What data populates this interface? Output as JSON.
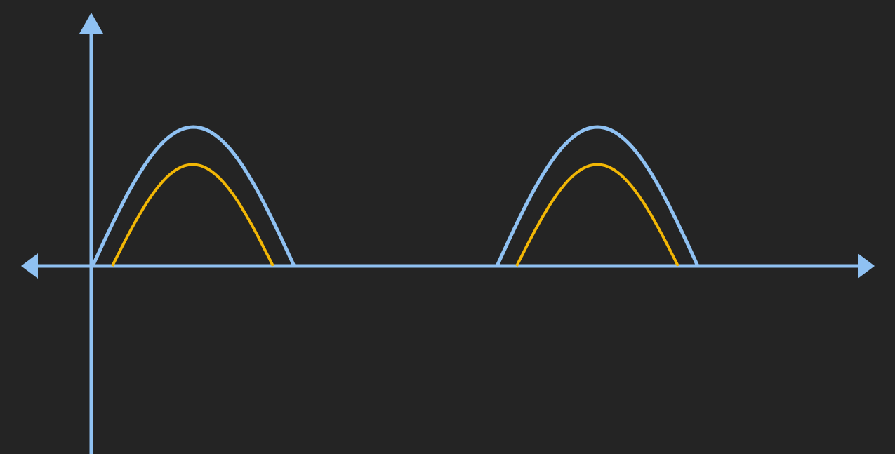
{
  "colors": {
    "background": "#242424",
    "axis": "#8fc1f2",
    "input_wave": "#8fc1f2",
    "output_wave": "#f2b705"
  },
  "waveform": {
    "description_type": "half-wave rectified sine",
    "pulse_count": 2,
    "input_peak": 1.0,
    "output_peak": 0.73
  }
}
